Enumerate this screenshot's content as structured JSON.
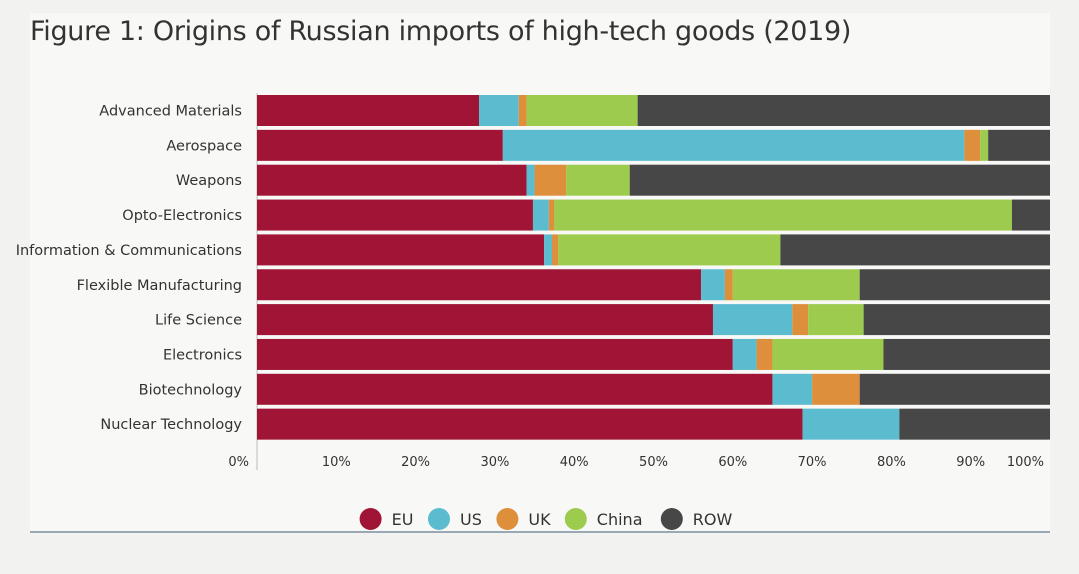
{
  "chart_data": {
    "type": "bar",
    "orientation": "horizontal",
    "stacked": true,
    "title": "Figure 1: Origins of Russian imports of high-tech goods (2019)",
    "xlabel": "",
    "ylabel": "",
    "xlim": [
      0,
      100
    ],
    "x_ticks": [
      "0%",
      "10%",
      "20%",
      "30%",
      "40%",
      "50%",
      "60%",
      "70%",
      "80%",
      "90%",
      "100%"
    ],
    "grid": false,
    "legend_position": "bottom",
    "categories": [
      "Advanced Materials",
      "Aerospace",
      "Weapons",
      "Opto-Electronics",
      "Information & Communications",
      "Flexible Manufacturing",
      "Life Science",
      "Electronics",
      "Biotechnology",
      "Nuclear Technology"
    ],
    "series": [
      {
        "name": "EU",
        "color": "#a01535",
        "values": [
          28.0,
          31.0,
          34.0,
          34.8,
          36.2,
          56.0,
          57.5,
          60.0,
          65.0,
          68.8
        ]
      },
      {
        "name": "US",
        "color": "#5bbccf",
        "values": [
          5.0,
          58.2,
          1.0,
          2.0,
          1.0,
          3.0,
          10.0,
          3.0,
          5.0,
          12.2
        ]
      },
      {
        "name": "UK",
        "color": "#de8f3c",
        "values": [
          1.0,
          2.0,
          4.0,
          0.7,
          0.8,
          1.0,
          2.0,
          2.0,
          6.0,
          0
        ]
      },
      {
        "name": "China",
        "color": "#9ccb4d",
        "values": [
          14.0,
          1.0,
          8.0,
          57.7,
          28.0,
          16.0,
          7.0,
          14.0,
          0,
          0
        ]
      },
      {
        "name": "ROW",
        "color": "#474747",
        "values": [
          52.0,
          7.8,
          53.0,
          4.8,
          34.0,
          24.0,
          23.5,
          21.0,
          24.0,
          19.0
        ]
      }
    ]
  }
}
